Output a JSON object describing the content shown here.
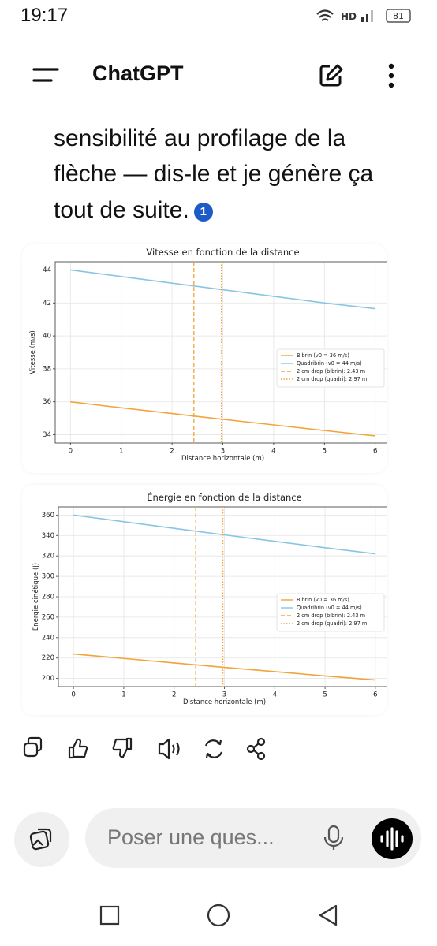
{
  "status": {
    "time": "19:17",
    "network": "HD",
    "battery": "81"
  },
  "header": {
    "title": "ChatGPT"
  },
  "message": {
    "lines": [
      "sensibilité au profilage de la",
      "flèche — dis-le et je génère ça",
      "tout de suite."
    ],
    "citation": "1"
  },
  "chart_data": [
    {
      "type": "line",
      "title": "Vitesse en fonction de la distance",
      "x_label": "Distance horizontale (m)",
      "y_label": "Vitesse (m/s)",
      "x": [
        0,
        1,
        2,
        3,
        4,
        5,
        6
      ],
      "series": [
        {
          "name": "Bibrin (v0 = 36 m/s)",
          "color": "#f2a33a",
          "values": [
            36,
            35.64,
            35.29,
            34.94,
            34.6,
            34.26,
            33.93
          ]
        },
        {
          "name": "Quadribrin (v0 = 44 m/s)",
          "color": "#88c5e3",
          "values": [
            44,
            43.6,
            43.2,
            42.8,
            42.4,
            42.0,
            41.65
          ]
        }
      ],
      "vlines": [
        {
          "name": "2 cm drop (bibrin): 2.43 m",
          "color": "#f2a33a",
          "x": 2.43,
          "style": "dashed"
        },
        {
          "name": "2 cm drop (quadri): 2.97 m",
          "color": "#f2a33a",
          "x": 2.97,
          "style": "dotted"
        }
      ],
      "xlim": [
        -0.3,
        6.3
      ],
      "xticks": [
        0,
        1,
        2,
        3,
        4,
        5,
        6
      ],
      "ylim": [
        33.5,
        44.5
      ],
      "yticks": [
        34,
        36,
        38,
        40,
        42,
        44
      ],
      "grid": true,
      "legend": "center right"
    },
    {
      "type": "line",
      "title": "Énergie en fonction de la distance",
      "x_label": "Distance horizontale (m)",
      "y_label": "Énergie cinétique (J)",
      "x": [
        0,
        1,
        2,
        3,
        4,
        5,
        6
      ],
      "series": [
        {
          "name": "Bibrin (v0 = 36 m/s)",
          "color": "#f2a33a",
          "values": [
            224,
            219.6,
            215.2,
            210.9,
            206.7,
            202.5,
            198.5
          ]
        },
        {
          "name": "Quadribrin (v0 = 44 m/s)",
          "color": "#88c5e3",
          "values": [
            360,
            353.5,
            347,
            340.6,
            334.3,
            328,
            322
          ]
        }
      ],
      "vlines": [
        {
          "name": "2 cm drop (bibrin): 2.43 m",
          "color": "#f2a33a",
          "x": 2.43,
          "style": "dashed"
        },
        {
          "name": "2 cm drop (quadri): 2.97 m",
          "color": "#f2a33a",
          "x": 2.97,
          "style": "dotted"
        }
      ],
      "xlim": [
        -0.3,
        6.3
      ],
      "xticks": [
        0,
        1,
        2,
        3,
        4,
        5,
        6
      ],
      "ylim": [
        192,
        368
      ],
      "yticks": [
        200,
        220,
        240,
        260,
        280,
        300,
        320,
        340,
        360
      ],
      "grid": true,
      "legend": "center right"
    }
  ],
  "input": {
    "placeholder": "Poser une ques..."
  }
}
